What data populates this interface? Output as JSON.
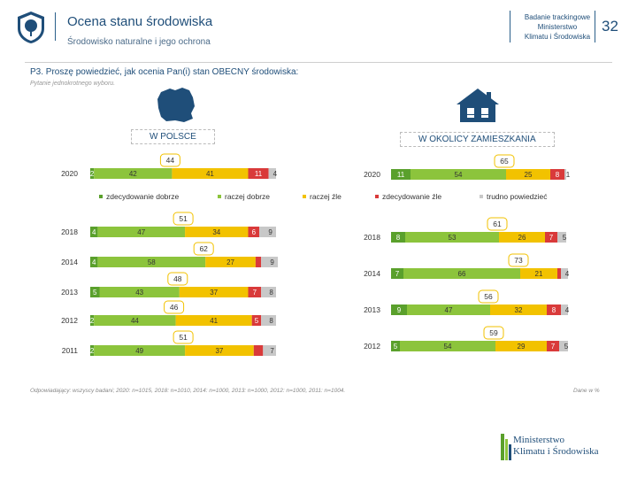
{
  "header": {
    "title": "Ocena stanu środowiska",
    "subtitle": "Środowisko naturalne i jego ochrona",
    "right_lines": [
      "Badanie trackingowe",
      "Ministerstwo",
      "Klimatu i Środowiska"
    ],
    "page_number": "32"
  },
  "question": "P3. Proszę powiedzieć, jak ocenia Pan(i) stan OBECNY środowiska:",
  "note": "Pytanie jednokrotnego wyboru.",
  "footer": "Odpowiadający: wszyscy badani; 2020: n=1015, 2018: n=1010, 2014: n=1000, 2013: n=1000, 2012: n=1000, 2011: n=1004.",
  "footer_right": "Dane w %",
  "ministry": [
    "Ministerstwo",
    "Klimatu i Środowiska"
  ],
  "colors": {
    "very_good": "#5aa02c",
    "rather_good": "#8cc43c",
    "rather_bad": "#f2c200",
    "very_bad": "#d93a3a",
    "hard_to_say": "#c8c8c8",
    "accent": "#1f4e79",
    "callout_border": "#f2c200"
  },
  "chart_data": [
    {
      "type": "bar",
      "orientation": "horizontal-stacked",
      "title": "W POLSCE",
      "categories": [
        "2020",
        "2018",
        "2014",
        "2013",
        "2012",
        "2011"
      ],
      "series": [
        {
          "name": "zdecydowanie dobrze",
          "values": [
            2,
            4,
            4,
            5,
            2,
            2
          ]
        },
        {
          "name": "raczej dobrze",
          "values": [
            42,
            47,
            58,
            43,
            44,
            49
          ]
        },
        {
          "name": "raczej źle",
          "values": [
            41,
            34,
            27,
            37,
            41,
            37
          ]
        },
        {
          "name": "zdecydowanie źle",
          "values": [
            11,
            6,
            3,
            7,
            5,
            5
          ]
        },
        {
          "name": "trudno powiedzieć",
          "values": [
            4,
            9,
            9,
            8,
            8,
            7
          ]
        }
      ],
      "labels": [
        [
          "2",
          "42",
          "41",
          "11",
          "4"
        ],
        [
          "4",
          "47",
          "34",
          "6",
          "9"
        ],
        [
          "4",
          "58",
          "27",
          "",
          "9"
        ],
        [
          "5",
          "43",
          "37",
          "7",
          "8"
        ],
        [
          "2",
          "44",
          "41",
          "5",
          "8"
        ],
        [
          "2",
          "49",
          "37",
          "",
          "7"
        ]
      ],
      "good_totals": [
        "44",
        "51",
        "62",
        "48",
        "46",
        "51"
      ]
    },
    {
      "type": "bar",
      "orientation": "horizontal-stacked",
      "title": "W OKOLICY ZAMIESZKANIA",
      "categories": [
        "2020",
        "2018",
        "2014",
        "2013",
        "2012"
      ],
      "series": [
        {
          "name": "zdecydowanie dobrze",
          "values": [
            11,
            8,
            7,
            9,
            5
          ]
        },
        {
          "name": "raczej dobrze",
          "values": [
            54,
            53,
            66,
            47,
            54
          ]
        },
        {
          "name": "raczej źle",
          "values": [
            25,
            26,
            21,
            32,
            29
          ]
        },
        {
          "name": "zdecydowanie źle",
          "values": [
            8,
            7,
            2,
            8,
            7
          ]
        },
        {
          "name": "trudno powiedzieć",
          "values": [
            1,
            5,
            4,
            4,
            5
          ]
        }
      ],
      "labels": [
        [
          "11",
          "54",
          "25",
          "8",
          "1"
        ],
        [
          "8",
          "53",
          "26",
          "7",
          "5"
        ],
        [
          "7",
          "66",
          "21",
          "",
          "4"
        ],
        [
          "9",
          "47",
          "32",
          "8",
          "4"
        ],
        [
          "5",
          "54",
          "29",
          "7",
          "5"
        ]
      ],
      "good_totals": [
        "65",
        "61",
        "73",
        "56",
        "59"
      ]
    }
  ],
  "legend": [
    "zdecydowanie dobrze",
    "raczej dobrze",
    "raczej źle",
    "zdecydowanie źle",
    "trudno powiedzieć"
  ]
}
